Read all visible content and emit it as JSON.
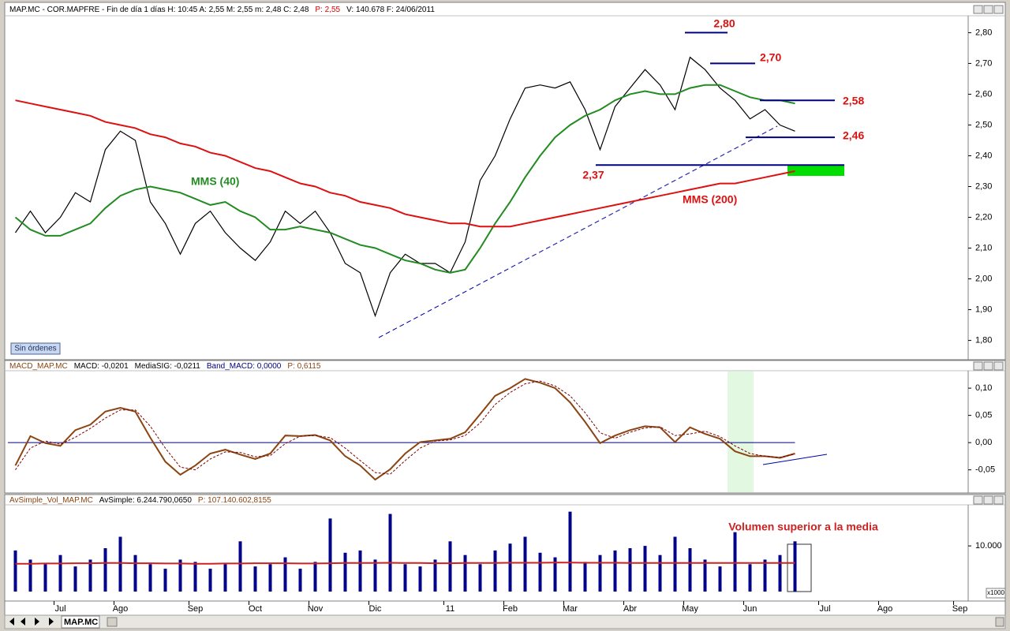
{
  "chart_data": [
    {
      "type": "line",
      "header": [
        {
          "text": "MAP.MC - COR.MAPFRE - Fin de día 1 días  H: 10:45  A: 2,55  M: 2,55  m: 2,48  C: 2,48",
          "color": "#000000"
        },
        {
          "text": "P: 2,55",
          "color": "#dd0000"
        },
        {
          "text": "V: 140.678  F: 24/06/2011",
          "color": "#000000"
        }
      ],
      "categories": [
        null,
        null,
        null,
        "Jul",
        null,
        null,
        null,
        "Ago",
        null,
        null,
        null,
        null,
        "Sep",
        null,
        null,
        null,
        "Oct",
        null,
        null,
        null,
        "Nov",
        null,
        null,
        null,
        "Dic",
        null,
        null,
        null,
        null,
        "11",
        null,
        null,
        null,
        "Feb",
        null,
        null,
        null,
        "Mar",
        null,
        null,
        null,
        "Abr",
        null,
        null,
        null,
        "May",
        null,
        null,
        null,
        "Jun",
        null,
        null,
        null,
        null,
        "Jul",
        null,
        null,
        null,
        "Ago",
        null,
        null,
        null,
        null,
        "Sep"
      ],
      "series": [
        {
          "color": "#000000",
          "values": [
            2.15,
            2.22,
            2.15,
            2.2,
            2.28,
            2.25,
            2.42,
            2.48,
            2.45,
            2.25,
            2.18,
            2.08,
            2.18,
            2.22,
            2.15,
            2.1,
            2.06,
            2.12,
            2.22,
            2.18,
            2.22,
            2.15,
            2.05,
            2.02,
            1.88,
            2.02,
            2.08,
            2.05,
            2.05,
            2.02,
            2.12,
            2.32,
            2.4,
            2.52,
            2.62,
            2.63,
            2.62,
            2.64,
            2.55,
            2.42,
            2.56,
            2.62,
            2.68,
            2.63,
            2.55,
            2.72,
            2.68,
            2.62,
            2.58,
            2.52,
            2.55,
            2.5,
            2.48,
            null,
            null,
            null,
            null,
            null,
            null,
            null,
            null,
            null,
            null,
            null
          ]
        },
        {
          "name": "MMS (40)",
          "color": "#228b22",
          "values": [
            2.2,
            2.16,
            2.14,
            2.14,
            2.16,
            2.18,
            2.23,
            2.27,
            2.29,
            2.3,
            2.29,
            2.28,
            2.26,
            2.24,
            2.25,
            2.22,
            2.2,
            2.16,
            2.16,
            2.17,
            2.16,
            2.15,
            2.13,
            2.11,
            2.1,
            2.08,
            2.06,
            2.05,
            2.03,
            2.02,
            2.03,
            2.1,
            2.18,
            2.25,
            2.33,
            2.4,
            2.46,
            2.5,
            2.53,
            2.55,
            2.58,
            2.6,
            2.61,
            2.6,
            2.6,
            2.62,
            2.63,
            2.63,
            2.61,
            2.59,
            2.58,
            2.58,
            2.57,
            null,
            null,
            null,
            null,
            null,
            null,
            null,
            null,
            null,
            null,
            null
          ]
        },
        {
          "name": "MMS (200)",
          "color": "#dd1111",
          "values": [
            2.58,
            2.57,
            2.56,
            2.55,
            2.54,
            2.53,
            2.51,
            2.5,
            2.49,
            2.47,
            2.46,
            2.44,
            2.43,
            2.41,
            2.4,
            2.38,
            2.36,
            2.35,
            2.33,
            2.31,
            2.3,
            2.28,
            2.27,
            2.25,
            2.24,
            2.23,
            2.21,
            2.2,
            2.19,
            2.18,
            2.18,
            2.17,
            2.17,
            2.17,
            2.18,
            2.19,
            2.2,
            2.21,
            2.22,
            2.23,
            2.24,
            2.25,
            2.26,
            2.27,
            2.28,
            2.29,
            2.3,
            2.31,
            2.31,
            2.32,
            2.33,
            2.34,
            2.35,
            null,
            null,
            null,
            null,
            null,
            null,
            null,
            null,
            null,
            null,
            null
          ]
        }
      ],
      "ylim": [
        1.74,
        2.86
      ],
      "yticks": [
        {
          "value": 1.8,
          "label": "1,80"
        },
        {
          "value": 1.9,
          "label": "1,90"
        },
        {
          "value": 2.0,
          "label": "2,00"
        },
        {
          "value": 2.1,
          "label": "2,10"
        },
        {
          "value": 2.2,
          "label": "2,20"
        },
        {
          "value": 2.3,
          "label": "2,30"
        },
        {
          "value": 2.4,
          "label": "2,40"
        },
        {
          "value": 2.5,
          "label": "2,50"
        },
        {
          "value": 2.6,
          "label": "2,60"
        },
        {
          "value": 2.7,
          "label": "2,70"
        },
        {
          "value": 2.8,
          "label": "2,80"
        }
      ],
      "levels": [
        {
          "value": 2.8,
          "label": "2,80"
        },
        {
          "value": 2.7,
          "label": "2,70"
        },
        {
          "value": 2.58,
          "label": "2,58"
        },
        {
          "value": 2.46,
          "label": "2,46"
        },
        {
          "value": 2.37,
          "label": "2,37"
        }
      ],
      "level_color": "#000080",
      "level_label_color": "#dd1111",
      "button": "Sin órdenes"
    },
    {
      "type": "line",
      "header": [
        {
          "text": "MACD_MAP.MC",
          "color": "#8b4513"
        },
        {
          "text": "MACD: -0,0201",
          "color": "#000000"
        },
        {
          "text": "MediaSIG: -0,0211",
          "color": "#000000"
        },
        {
          "text": "Band_MACD: 0,0000",
          "color": "#000080"
        },
        {
          "text": "P: 0,6115",
          "color": "#8b4513"
        }
      ],
      "series": [
        {
          "color": "#8b4513",
          "width": 2,
          "values": [
            -0.042,
            0.012,
            -0.001,
            -0.006,
            0.023,
            0.033,
            0.057,
            0.064,
            0.057,
            0.009,
            -0.035,
            -0.059,
            -0.042,
            -0.02,
            -0.013,
            -0.022,
            -0.03,
            -0.02,
            0.013,
            0.012,
            0.014,
            0.004,
            -0.025,
            -0.042,
            -0.068,
            -0.049,
            -0.02,
            0.001,
            0.004,
            0.007,
            0.019,
            0.052,
            0.086,
            0.1,
            0.117,
            0.11,
            0.1,
            0.074,
            0.038,
            -0.001,
            0.013,
            0.023,
            0.03,
            0.028,
            0.001,
            0.028,
            0.016,
            0.007,
            -0.016,
            -0.025,
            -0.025,
            -0.028,
            -0.02,
            null,
            null,
            null,
            null,
            null,
            null,
            null,
            null,
            null,
            null,
            null
          ]
        },
        {
          "color": "#800000",
          "width": 1,
          "dashed": true,
          "values": [
            -0.05,
            -0.01,
            0.003,
            -0.003,
            0.01,
            0.026,
            0.045,
            0.06,
            0.06,
            0.03,
            -0.01,
            -0.045,
            -0.05,
            -0.03,
            -0.017,
            -0.018,
            -0.026,
            -0.024,
            -0.002,
            0.012,
            0.013,
            0.009,
            -0.01,
            -0.033,
            -0.055,
            -0.058,
            -0.033,
            -0.01,
            0.003,
            0.005,
            0.013,
            0.036,
            0.07,
            0.092,
            0.108,
            0.113,
            0.104,
            0.086,
            0.055,
            0.018,
            0.008,
            0.019,
            0.027,
            0.029,
            0.013,
            0.016,
            0.021,
            0.011,
            -0.006,
            -0.02,
            -0.025,
            -0.027,
            -0.021,
            null,
            null,
            null,
            null,
            null,
            null,
            null,
            null,
            null,
            null,
            null
          ]
        }
      ],
      "hline": 0,
      "hline_color": "#000080",
      "ylim": [
        -0.091,
        0.132
      ],
      "yticks": [
        {
          "value": -0.05,
          "label": "-0,05"
        },
        {
          "value": 0,
          "label": "0,00"
        },
        {
          "value": 0.05,
          "label": "0,05"
        },
        {
          "value": 0.1,
          "label": "0,10"
        }
      ]
    },
    {
      "type": "bar",
      "header": [
        {
          "text": "AvSimple_Vol_MAP.MC",
          "color": "#8b4513"
        },
        {
          "text": "AvSimple: 6.244.790,0650",
          "color": "#000000"
        },
        {
          "text": "P: 107.140.602,8155",
          "color": "#8b4513"
        }
      ],
      "series": [
        {
          "type": "bar",
          "color": "#00008b",
          "values": [
            9000,
            7000,
            6000,
            8000,
            5500,
            7000,
            9500,
            12000,
            8000,
            6000,
            5000,
            7000,
            6500,
            5000,
            6000,
            11000,
            5500,
            6000,
            7500,
            5000,
            6500,
            16000,
            8500,
            9000,
            7000,
            17000,
            6000,
            5500,
            7000,
            11000,
            8000,
            6000,
            9000,
            10500,
            12000,
            8500,
            7500,
            17500,
            6500,
            8000,
            9000,
            9500,
            10000,
            8000,
            12000,
            9500,
            7000,
            5500,
            13000,
            6000,
            7000,
            8000,
            11000,
            null,
            null,
            null,
            null,
            null,
            null,
            null,
            null,
            null,
            null,
            null
          ]
        },
        {
          "type": "line",
          "color": "#cc2222",
          "values": [
            6100,
            6100,
            6150,
            6150,
            6200,
            6200,
            6250,
            6250,
            6200,
            6200,
            6150,
            6150,
            6100,
            6100,
            6150,
            6150,
            6200,
            6200,
            6200,
            6150,
            6150,
            6200,
            6250,
            6250,
            6250,
            6300,
            6250,
            6250,
            6200,
            6200,
            6250,
            6250,
            6250,
            6300,
            6300,
            6300,
            6350,
            6350,
            6300,
            6300,
            6300,
            6250,
            6250,
            6250,
            6250,
            6250,
            6250,
            6250,
            6250,
            6250,
            6250,
            6250,
            6250,
            null,
            null,
            null,
            null,
            null,
            null,
            null,
            null,
            null,
            null,
            null
          ]
        }
      ],
      "ylim": [
        0,
        19000
      ],
      "yticks": [
        {
          "value": 10000,
          "label": "10.000"
        }
      ],
      "y_unit": "x1000",
      "annotation": "Volumen superior a la media"
    }
  ],
  "tab": "MAP.MC"
}
